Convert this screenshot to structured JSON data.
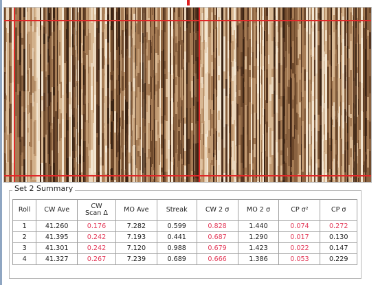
{
  "summary": {
    "title": "Set 2 Summary",
    "columns": [
      "Roll",
      "CW Ave",
      "CW\nScan Δ",
      "MO Ave",
      "Streak",
      "CW 2 σ",
      "MO 2 σ",
      "CP σ²",
      "CP σ"
    ],
    "rows": [
      [
        "1",
        "41.260",
        "0.176",
        "7.282",
        "0.599",
        "0.828",
        "1.440",
        "0.074",
        "0.272"
      ],
      [
        "2",
        "41.395",
        "0.242",
        "7.193",
        "0.441",
        "0.687",
        "1.290",
        "0.017",
        "0.130"
      ],
      [
        "3",
        "41.301",
        "0.242",
        "7.120",
        "0.988",
        "0.679",
        "1.423",
        "0.022",
        "0.147"
      ],
      [
        "4",
        "41.327",
        "0.267",
        "7.239",
        "0.689",
        "0.666",
        "1.386",
        "0.053",
        "0.229"
      ]
    ],
    "highlighted_cells": [
      [
        0,
        2
      ],
      [
        0,
        5
      ],
      [
        0,
        7
      ],
      [
        0,
        8
      ],
      [
        1,
        2
      ],
      [
        1,
        5
      ],
      [
        1,
        7
      ],
      [
        2,
        2
      ],
      [
        2,
        5
      ],
      [
        2,
        7
      ],
      [
        3,
        2
      ],
      [
        3,
        5
      ],
      [
        3,
        7
      ]
    ]
  },
  "colors": {
    "highlight": "#e33b5a",
    "gridline": "#e12828",
    "heatmap_dark": "#3b2414",
    "heatmap_light": "#ead6bc"
  }
}
